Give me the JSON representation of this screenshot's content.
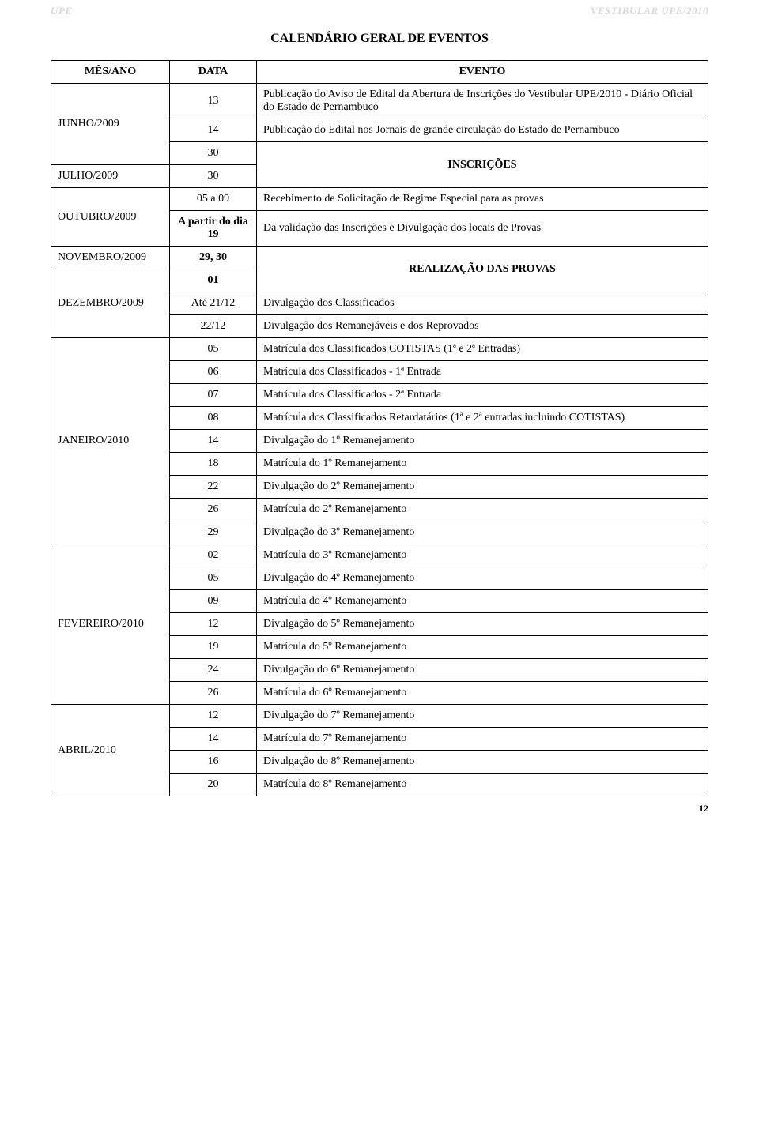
{
  "watermark_left": "UPE",
  "watermark_right": "VESTIBULAR UPE/2010",
  "title": "CALENDÁRIO GERAL DE EVENTOS",
  "headers": {
    "mes": "MÊS/ANO",
    "data": "DATA",
    "evento": "EVENTO"
  },
  "rows": [
    {
      "mes": "JUNHO/2009",
      "data": "13",
      "evento": "Publicação do Aviso de Edital da Abertura de Inscrições do Vestibular UPE/2010 - Diário Oficial do Estado de Pernambuco",
      "mes_rowspan": 3
    },
    {
      "data": "14",
      "evento": "Publicação do Edital nos Jornais de grande circulação do Estado de Pernambuco"
    },
    {
      "data": "30",
      "evento": "INSCRIÇÕES",
      "evento_rowspan": 2,
      "evento_bold": true,
      "evento_center": true
    },
    {
      "mes": "JULHO/2009",
      "data": "30"
    },
    {
      "mes": "OUTUBRO/2009",
      "data": "05 a 09",
      "evento": "Recebimento de Solicitação de Regime Especial para as provas",
      "mes_rowspan": 2
    },
    {
      "data": "A partir do dia 19",
      "data_bold": true,
      "evento": "Da validação das Inscrições e Divulgação dos locais de Provas"
    },
    {
      "mes": "NOVEMBRO/2009",
      "data": "29, 30",
      "data_bold": true,
      "evento": "REALIZAÇÃO DAS PROVAS",
      "evento_bold": true,
      "evento_center": true,
      "evento_rowspan": 2
    },
    {
      "mes": "DEZEMBRO/2009",
      "data": "01",
      "data_bold": true,
      "mes_rowspan": 3
    },
    {
      "data": "Até 21/12",
      "evento": "Divulgação dos Classificados"
    },
    {
      "data": "22/12",
      "evento": "Divulgação dos Remanejáveis e dos Reprovados"
    },
    {
      "mes": "JANEIRO/2010",
      "data": "05",
      "evento": "Matrícula dos Classificados COTISTAS (1ª e 2ª Entradas)",
      "mes_rowspan": 9
    },
    {
      "data": "06",
      "evento": "Matrícula dos Classificados - 1ª Entrada"
    },
    {
      "data": "07",
      "evento": "Matrícula dos Classificados - 2ª Entrada"
    },
    {
      "data": "08",
      "evento": "Matrícula dos Classificados Retardatários (1ª e 2ª entradas incluindo COTISTAS)"
    },
    {
      "data": "14",
      "evento": "Divulgação do 1º Remanejamento"
    },
    {
      "data": "18",
      "evento": "Matrícula do 1º Remanejamento"
    },
    {
      "data": "22",
      "evento": "Divulgação do 2º Remanejamento"
    },
    {
      "data": "26",
      "evento": "Matrícula do 2º Remanejamento"
    },
    {
      "data": "29",
      "evento": "Divulgação do 3º Remanejamento"
    },
    {
      "mes": "FEVEREIRO/2010",
      "data": "02",
      "evento": "Matrícula do 3º Remanejamento",
      "mes_rowspan": 7
    },
    {
      "data": "05",
      "evento": "Divulgação do 4º Remanejamento"
    },
    {
      "data": "09",
      "evento": "Matrícula do 4º Remanejamento"
    },
    {
      "data": "12",
      "evento": "Divulgação do 5º Remanejamento"
    },
    {
      "data": "19",
      "evento": "Matrícula do 5º Remanejamento"
    },
    {
      "data": "24",
      "evento": "Divulgação do 6º Remanejamento"
    },
    {
      "data": "26",
      "evento": "Matrícula do 6º Remanejamento"
    },
    {
      "mes": "ABRIL/2010",
      "data": "12",
      "evento": "Divulgação do 7º Remanejamento",
      "mes_rowspan": 4
    },
    {
      "data": "14",
      "evento": "Matrícula do 7º Remanejamento"
    },
    {
      "data": "16",
      "evento": "Divulgação do 8º Remanejamento"
    },
    {
      "data": "20",
      "evento": "Matrícula do 8º Remanejamento"
    }
  ],
  "page_number": "12"
}
